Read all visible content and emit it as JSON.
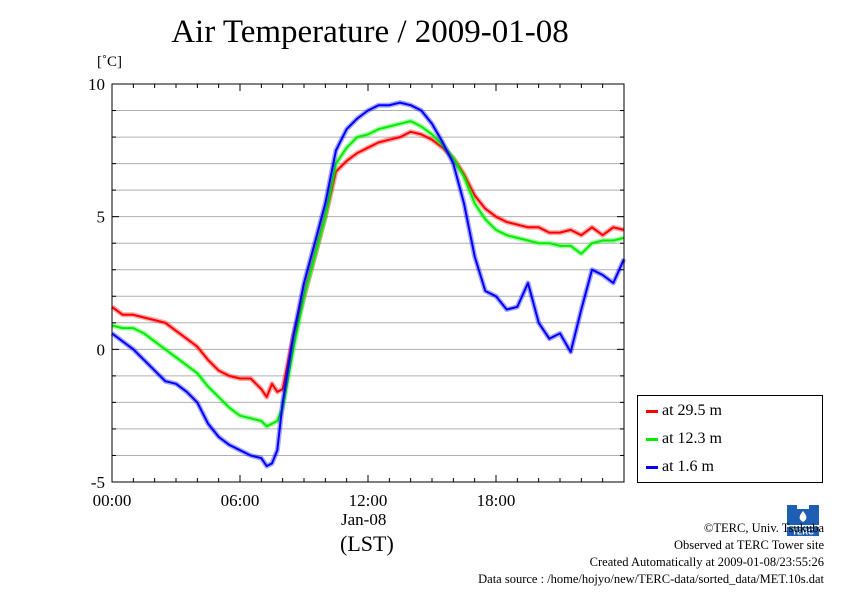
{
  "title": "Air Temperature / 2009-01-08",
  "unit_label": "[˚C]",
  "xaxis": {
    "date_label": "Jan-08",
    "tz_label": "(LST)"
  },
  "legend": [
    {
      "label": "at 29.5 m",
      "color": "#ff0000"
    },
    {
      "label": "at 12.3 m",
      "color": "#00ee00"
    },
    {
      "label": "at 1.6 m",
      "color": "#0000ff"
    }
  ],
  "credits": {
    "copyright": "©TERC, Univ. Tsukuba",
    "site": "Observed at TERC Tower site",
    "created": "Created Automatically at 2009-01-08/23:55:26",
    "source": "Data source : /home/hojyo/new/TERC-data/sorted_data/MET.10s.dat"
  },
  "logo_text": "TERC",
  "chart_data": {
    "type": "line",
    "title": "Air Temperature / 2009-01-08",
    "xlabel": "Jan-08 (LST)",
    "ylabel": "[˚C]",
    "xlim": [
      0,
      24
    ],
    "ylim": [
      -5,
      10
    ],
    "x_ticks": [
      {
        "value": 0,
        "label": "00:00"
      },
      {
        "value": 6,
        "label": "06:00"
      },
      {
        "value": 12,
        "label": "12:00"
      },
      {
        "value": 18,
        "label": "18:00"
      }
    ],
    "y_ticks": [
      {
        "value": -5,
        "label": "-5"
      },
      {
        "value": 0,
        "label": "0"
      },
      {
        "value": 5,
        "label": "5"
      },
      {
        "value": 10,
        "label": "10"
      }
    ],
    "grid": true,
    "legend_position": "bottom-right, outside plot",
    "series": [
      {
        "name": "at 29.5 m",
        "color": "#ff0000",
        "x": [
          0,
          0.5,
          1,
          1.5,
          2,
          2.5,
          3,
          3.5,
          4,
          4.5,
          5,
          5.5,
          6,
          6.5,
          7,
          7.25,
          7.5,
          7.75,
          8,
          8.5,
          9,
          9.5,
          10,
          10.5,
          11,
          11.5,
          12,
          12.5,
          13,
          13.5,
          14,
          14.5,
          15,
          15.5,
          16,
          16.5,
          17,
          17.5,
          18,
          18.5,
          19,
          19.5,
          20,
          20.5,
          21,
          21.5,
          22,
          22.5,
          23,
          23.5,
          24
        ],
        "y": [
          1.6,
          1.3,
          1.3,
          1.2,
          1.1,
          1.0,
          0.7,
          0.4,
          0.1,
          -0.4,
          -0.8,
          -1.0,
          -1.1,
          -1.1,
          -1.5,
          -1.8,
          -1.3,
          -1.6,
          -1.5,
          0.5,
          2.0,
          3.5,
          5.0,
          6.7,
          7.1,
          7.4,
          7.6,
          7.8,
          7.9,
          8.0,
          8.2,
          8.1,
          7.9,
          7.6,
          7.2,
          6.6,
          5.8,
          5.3,
          5.0,
          4.8,
          4.7,
          4.6,
          4.6,
          4.4,
          4.4,
          4.5,
          4.3,
          4.6,
          4.3,
          4.6,
          4.5
        ]
      },
      {
        "name": "at 12.3 m",
        "color": "#00ee00",
        "x": [
          0,
          0.5,
          1,
          1.5,
          2,
          2.5,
          3,
          3.5,
          4,
          4.5,
          5,
          5.5,
          6,
          6.5,
          7,
          7.25,
          7.5,
          7.75,
          8,
          8.5,
          9,
          9.5,
          10,
          10.5,
          11,
          11.5,
          12,
          12.5,
          13,
          13.5,
          14,
          14.5,
          15,
          15.5,
          16,
          16.5,
          17,
          17.5,
          18,
          18.5,
          19,
          19.5,
          20,
          20.5,
          21,
          21.5,
          22,
          22.5,
          23,
          23.5,
          24
        ],
        "y": [
          0.9,
          0.8,
          0.8,
          0.6,
          0.3,
          0.0,
          -0.3,
          -0.6,
          -0.9,
          -1.4,
          -1.8,
          -2.2,
          -2.5,
          -2.6,
          -2.7,
          -2.9,
          -2.8,
          -2.7,
          -2.2,
          0.0,
          2.0,
          3.5,
          5.0,
          7.0,
          7.6,
          8.0,
          8.1,
          8.3,
          8.4,
          8.5,
          8.6,
          8.4,
          8.1,
          7.7,
          7.2,
          6.5,
          5.5,
          4.9,
          4.5,
          4.3,
          4.2,
          4.1,
          4.0,
          4.0,
          3.9,
          3.9,
          3.6,
          4.0,
          4.1,
          4.1,
          4.2
        ]
      },
      {
        "name": "at 1.6 m",
        "color": "#0000ff",
        "x": [
          0,
          0.5,
          1,
          1.5,
          2,
          2.5,
          3,
          3.5,
          4,
          4.5,
          5,
          5.5,
          6,
          6.5,
          7,
          7.25,
          7.5,
          7.75,
          8,
          8.5,
          9,
          9.5,
          10,
          10.5,
          11,
          11.5,
          12,
          12.5,
          13,
          13.5,
          14,
          14.5,
          15,
          15.5,
          16,
          16.5,
          17,
          17.5,
          18,
          18.5,
          19,
          19.5,
          20,
          20.5,
          21,
          21.5,
          22,
          22.5,
          23,
          23.5,
          24
        ],
        "y": [
          0.6,
          0.3,
          0.0,
          -0.4,
          -0.8,
          -1.2,
          -1.3,
          -1.6,
          -2.0,
          -2.8,
          -3.3,
          -3.6,
          -3.8,
          -4.0,
          -4.1,
          -4.4,
          -4.3,
          -3.8,
          -2.0,
          0.5,
          2.5,
          4.0,
          5.5,
          7.5,
          8.3,
          8.7,
          9.0,
          9.2,
          9.2,
          9.3,
          9.2,
          9.0,
          8.5,
          7.8,
          7.0,
          5.5,
          3.5,
          2.2,
          2.0,
          1.5,
          1.6,
          2.5,
          1.0,
          0.4,
          0.6,
          -0.1,
          1.5,
          3.0,
          2.8,
          2.5,
          3.4
        ]
      }
    ]
  }
}
